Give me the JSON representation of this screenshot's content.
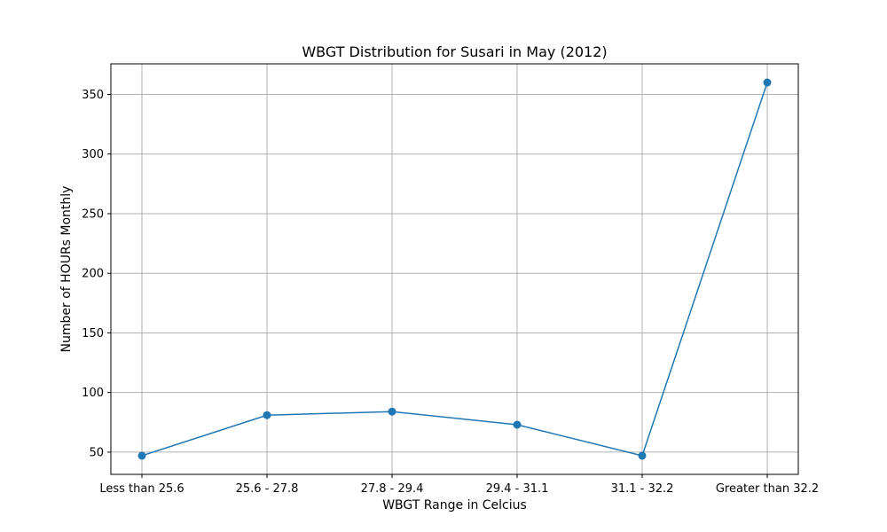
{
  "chart_data": {
    "type": "line",
    "title": "WBGT Distribution for Susari in May (2012)",
    "xlabel": "WBGT Range in Celcius",
    "ylabel": "Number of HOURs Monthly",
    "categories": [
      "Less than 25.6",
      "25.6 - 27.8",
      "27.8 - 29.4",
      "29.4 - 31.1",
      "31.1 - 32.2",
      "Greater than 32.2"
    ],
    "series": [
      {
        "values": [
          47,
          81,
          84,
          73,
          47,
          360
        ],
        "color": "#1f77b4"
      }
    ],
    "ylim": [
      31.35,
      375.65
    ],
    "yticks": [
      50,
      100,
      150,
      200,
      250,
      300,
      350
    ],
    "grid": true
  }
}
